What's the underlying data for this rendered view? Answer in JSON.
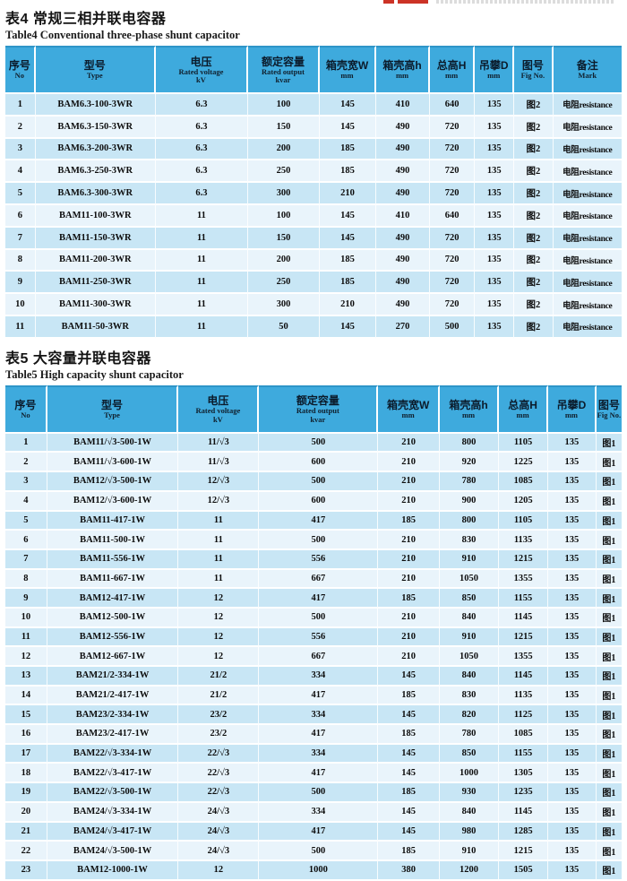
{
  "logo": {
    "accent_color": "#cc3326"
  },
  "table4": {
    "title_cn": "表4  常规三相并联电容器",
    "title_en": "Table4  Conventional three-phase shunt capacitor",
    "columns": [
      [
        "序号",
        "No"
      ],
      [
        "型号",
        "Type"
      ],
      [
        "电压",
        "Rated voltage",
        "kV"
      ],
      [
        "额定容量",
        "Rated output",
        "kvar"
      ],
      [
        "箱壳宽W",
        "mm"
      ],
      [
        "箱壳高h",
        "mm"
      ],
      [
        "总高H",
        "mm"
      ],
      [
        "吊攀D",
        "mm"
      ],
      [
        "图号",
        "Fig No."
      ],
      [
        "备注",
        "Mark"
      ]
    ],
    "rows": [
      [
        "1",
        "BAM6.3-100-3WR",
        "6.3",
        "100",
        "145",
        "410",
        "640",
        "135",
        "图2",
        "电阻resistance"
      ],
      [
        "2",
        "BAM6.3-150-3WR",
        "6.3",
        "150",
        "145",
        "490",
        "720",
        "135",
        "图2",
        "电阻resistance"
      ],
      [
        "3",
        "BAM6.3-200-3WR",
        "6.3",
        "200",
        "185",
        "490",
        "720",
        "135",
        "图2",
        "电阻resistance"
      ],
      [
        "4",
        "BAM6.3-250-3WR",
        "6.3",
        "250",
        "185",
        "490",
        "720",
        "135",
        "图2",
        "电阻resistance"
      ],
      [
        "5",
        "BAM6.3-300-3WR",
        "6.3",
        "300",
        "210",
        "490",
        "720",
        "135",
        "图2",
        "电阻resistance"
      ],
      [
        "6",
        "BAM11-100-3WR",
        "11",
        "100",
        "145",
        "410",
        "640",
        "135",
        "图2",
        "电阻resistance"
      ],
      [
        "7",
        "BAM11-150-3WR",
        "11",
        "150",
        "145",
        "490",
        "720",
        "135",
        "图2",
        "电阻resistance"
      ],
      [
        "8",
        "BAM11-200-3WR",
        "11",
        "200",
        "185",
        "490",
        "720",
        "135",
        "图2",
        "电阻resistance"
      ],
      [
        "9",
        "BAM11-250-3WR",
        "11",
        "250",
        "185",
        "490",
        "720",
        "135",
        "图2",
        "电阻resistance"
      ],
      [
        "10",
        "BAM11-300-3WR",
        "11",
        "300",
        "210",
        "490",
        "720",
        "135",
        "图2",
        "电阻resistance"
      ],
      [
        "11",
        "BAM11-50-3WR",
        "11",
        "50",
        "145",
        "270",
        "500",
        "135",
        "图2",
        "电阻resistance"
      ]
    ]
  },
  "table5": {
    "title_cn": "表5  大容量并联电容器",
    "title_en": "Table5  High capacity shunt capacitor",
    "columns": [
      [
        "序号",
        "No"
      ],
      [
        "型号",
        "Type"
      ],
      [
        "电压",
        "Rated voltage",
        "kV"
      ],
      [
        "额定容量",
        "Rated output",
        "kvar"
      ],
      [
        "箱壳宽W",
        "mm"
      ],
      [
        "箱壳高h",
        "mm"
      ],
      [
        "总高H",
        "mm"
      ],
      [
        "吊攀D",
        "mm"
      ],
      [
        "图号",
        "Fig No."
      ]
    ],
    "rows": [
      [
        "1",
        "BAM11/√3-500-1W",
        "11/√3",
        "500",
        "210",
        "800",
        "1105",
        "135",
        "图1"
      ],
      [
        "2",
        "BAM11/√3-600-1W",
        "11/√3",
        "600",
        "210",
        "920",
        "1225",
        "135",
        "图1"
      ],
      [
        "3",
        "BAM12/√3-500-1W",
        "12/√3",
        "500",
        "210",
        "780",
        "1085",
        "135",
        "图1"
      ],
      [
        "4",
        "BAM12/√3-600-1W",
        "12/√3",
        "600",
        "210",
        "900",
        "1205",
        "135",
        "图1"
      ],
      [
        "5",
        "BAM11-417-1W",
        "11",
        "417",
        "185",
        "800",
        "1105",
        "135",
        "图1"
      ],
      [
        "6",
        "BAM11-500-1W",
        "11",
        "500",
        "210",
        "830",
        "1135",
        "135",
        "图1"
      ],
      [
        "7",
        "BAM11-556-1W",
        "11",
        "556",
        "210",
        "910",
        "1215",
        "135",
        "图1"
      ],
      [
        "8",
        "BAM11-667-1W",
        "11",
        "667",
        "210",
        "1050",
        "1355",
        "135",
        "图1"
      ],
      [
        "9",
        "BAM12-417-1W",
        "12",
        "417",
        "185",
        "850",
        "1155",
        "135",
        "图1"
      ],
      [
        "10",
        "BAM12-500-1W",
        "12",
        "500",
        "210",
        "840",
        "1145",
        "135",
        "图1"
      ],
      [
        "11",
        "BAM12-556-1W",
        "12",
        "556",
        "210",
        "910",
        "1215",
        "135",
        "图1"
      ],
      [
        "12",
        "BAM12-667-1W",
        "12",
        "667",
        "210",
        "1050",
        "1355",
        "135",
        "图1"
      ],
      [
        "13",
        "BAM21/2-334-1W",
        "21/2",
        "334",
        "145",
        "840",
        "1145",
        "135",
        "图1"
      ],
      [
        "14",
        "BAM21/2-417-1W",
        "21/2",
        "417",
        "185",
        "830",
        "1135",
        "135",
        "图1"
      ],
      [
        "15",
        "BAM23/2-334-1W",
        "23/2",
        "334",
        "145",
        "820",
        "1125",
        "135",
        "图1"
      ],
      [
        "16",
        "BAM23/2-417-1W",
        "23/2",
        "417",
        "185",
        "780",
        "1085",
        "135",
        "图1"
      ],
      [
        "17",
        "BAM22/√3-334-1W",
        "22/√3",
        "334",
        "145",
        "850",
        "1155",
        "135",
        "图1"
      ],
      [
        "18",
        "BAM22/√3-417-1W",
        "22/√3",
        "417",
        "145",
        "1000",
        "1305",
        "135",
        "图1"
      ],
      [
        "19",
        "BAM22/√3-500-1W",
        "22/√3",
        "500",
        "185",
        "930",
        "1235",
        "135",
        "图1"
      ],
      [
        "20",
        "BAM24/√3-334-1W",
        "24/√3",
        "334",
        "145",
        "840",
        "1145",
        "135",
        "图1"
      ],
      [
        "21",
        "BAM24/√3-417-1W",
        "24/√3",
        "417",
        "145",
        "980",
        "1285",
        "135",
        "图1"
      ],
      [
        "22",
        "BAM24/√3-500-1W",
        "24/√3",
        "500",
        "185",
        "910",
        "1215",
        "135",
        "图1"
      ],
      [
        "23",
        "BAM12-1000-1W",
        "12",
        "1000",
        "380",
        "1200",
        "1505",
        "135",
        "图1"
      ]
    ]
  }
}
